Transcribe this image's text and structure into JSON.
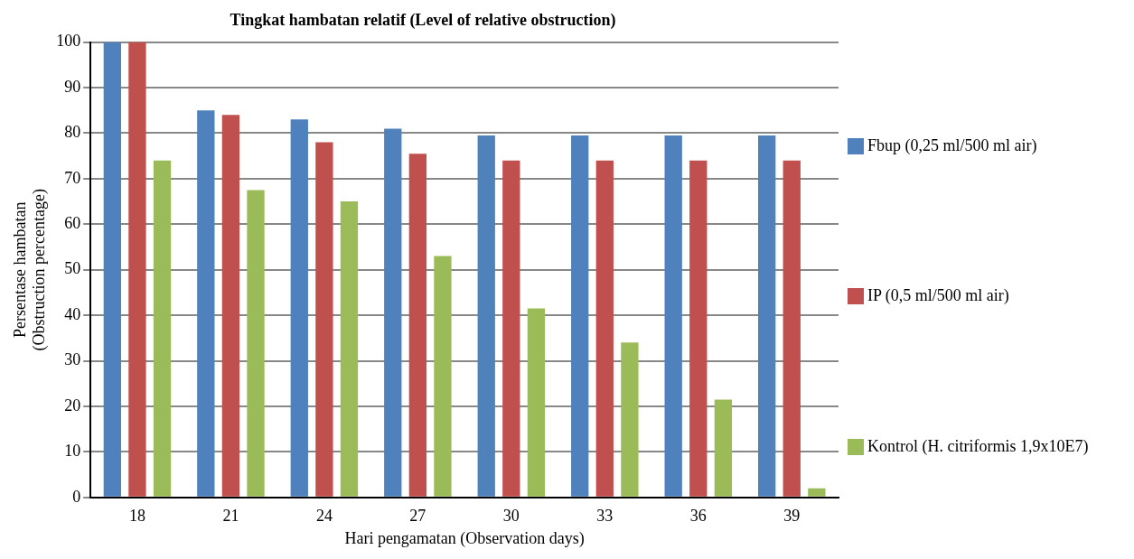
{
  "chart_data": {
    "type": "bar",
    "title": "Tingkat hambatan relatif (Level of relative obstruction)",
    "xlabel": "Hari pengamatan (Observation days)",
    "ylabel": "Persentase hambatan\n(Obstruction percentage)",
    "categories": [
      "18",
      "21",
      "24",
      "27",
      "30",
      "33",
      "36",
      "39"
    ],
    "series": [
      {
        "name": "Fbup (0,25 ml/500 ml air)",
        "color": "#4f81bd",
        "values": [
          100,
          85,
          83,
          81,
          79.5,
          79.5,
          79.5,
          79.5
        ]
      },
      {
        "name": "IP (0,5 ml/500 ml air)",
        "color": "#c0504d",
        "values": [
          100,
          84,
          78,
          75.5,
          74,
          74,
          74,
          74
        ]
      },
      {
        "name": "Kontrol (H. citriformis 1,9x10E7)",
        "color": "#9bbb59",
        "values": [
          74,
          67.5,
          65,
          53,
          41.5,
          34,
          21.5,
          2
        ]
      }
    ],
    "ylim": [
      0,
      100
    ],
    "yticks": [
      0,
      10,
      20,
      30,
      40,
      50,
      60,
      70,
      80,
      90,
      100
    ],
    "grid": "y",
    "legend": "right"
  }
}
